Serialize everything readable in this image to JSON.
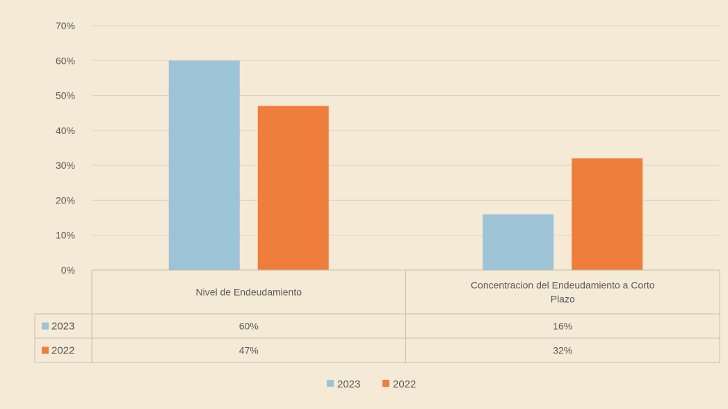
{
  "chart_data": {
    "type": "bar",
    "categories": [
      "Nivel de Endeudamiento",
      [
        "Concentracion del Endeudamiento a Corto",
        "Plazo"
      ]
    ],
    "series": [
      {
        "name": "2023",
        "values": [
          60,
          16
        ],
        "labels": [
          "60%",
          "16%"
        ],
        "color": "#9dc3d7"
      },
      {
        "name": "2022",
        "values": [
          47,
          32
        ],
        "labels": [
          "47%",
          "32%"
        ],
        "color": "#ef7e3c"
      }
    ],
    "yticks": [
      "0%",
      "10%",
      "20%",
      "30%",
      "40%",
      "50%",
      "60%",
      "70%"
    ],
    "ylim": [
      0,
      70
    ],
    "grid": true,
    "data_table": true,
    "legend_position": "bottom"
  }
}
